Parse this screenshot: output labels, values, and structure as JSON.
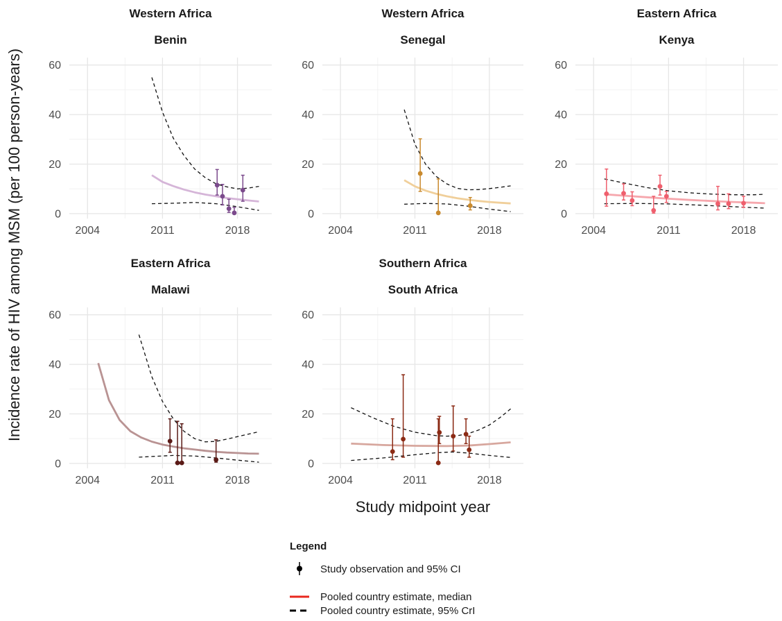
{
  "chart_data": {
    "type": "line",
    "ylabel": "Incidence rate of HIV among MSM (per 100 person-years)",
    "xlabel": "Study midpoint year",
    "xlim": [
      2002.3,
      2021.2
    ],
    "ylim": [
      -2,
      63
    ],
    "x_ticks": [
      2004,
      2011,
      2018
    ],
    "y_ticks": [
      0,
      20,
      40,
      60
    ],
    "grid": true,
    "legend_position": "bottom",
    "legend": {
      "title": "Legend",
      "items": [
        {
          "label": "Study observation and 95% CI",
          "kind": "point"
        },
        {
          "label": "Pooled country estimate, median",
          "kind": "line",
          "color": "#e8281e"
        },
        {
          "label": "Pooled country estimate, 95% CrI",
          "kind": "dashed",
          "color": "#000000"
        }
      ]
    },
    "panels": [
      {
        "region": "Western Africa",
        "country": "Benin",
        "point_color": "#7b4a8c",
        "median_color": "#d5b5d8",
        "median": {
          "x": [
            2010,
            2011,
            2012,
            2013,
            2014,
            2015,
            2016,
            2017,
            2018,
            2019,
            2020
          ],
          "y": [
            15.5,
            12.8,
            11.1,
            9.7,
            8.6,
            7.7,
            7.0,
            6.3,
            5.8,
            5.3,
            4.9
          ]
        },
        "crl_upper": {
          "x": [
            2010,
            2011,
            2012,
            2013,
            2014,
            2015,
            2016,
            2017,
            2018,
            2019,
            2020
          ],
          "y": [
            55,
            41,
            30.5,
            23.5,
            18,
            14.5,
            12,
            10.8,
            10,
            10.3,
            11
          ]
        },
        "crl_lower": {
          "x": [
            2010,
            2012,
            2014,
            2016,
            2018,
            2020
          ],
          "y": [
            4,
            4.2,
            4.5,
            4,
            2.8,
            1.3
          ]
        },
        "observations": [
          {
            "x": 2016.1,
            "y": 11.5,
            "lo": 7.5,
            "hi": 17.8
          },
          {
            "x": 2016.6,
            "y": 7.0,
            "lo": 3.5,
            "hi": 11.8
          },
          {
            "x": 2017.2,
            "y": 2.0,
            "lo": 0.5,
            "hi": 5.8
          },
          {
            "x": 2017.7,
            "y": 0.3,
            "lo": 0.0,
            "hi": 2.5
          },
          {
            "x": 2018.5,
            "y": 9.5,
            "lo": 5.0,
            "hi": 15.5
          }
        ]
      },
      {
        "region": "Western Africa",
        "country": "Senegal",
        "point_color": "#c98a2e",
        "median_color": "#f0cf9a",
        "median": {
          "x": [
            2010,
            2011,
            2012,
            2013,
            2014,
            2015,
            2016,
            2017,
            2018,
            2019,
            2020
          ],
          "y": [
            13.5,
            11,
            9.3,
            8,
            7,
            6.2,
            5.6,
            5.1,
            4.7,
            4.4,
            4.1
          ]
        },
        "crl_upper": {
          "x": [
            2010,
            2011,
            2012,
            2013,
            2014,
            2015,
            2016,
            2017,
            2018,
            2019,
            2020
          ],
          "y": [
            42,
            28,
            20,
            15,
            12,
            10.2,
            9.6,
            9.7,
            10.1,
            10.6,
            11.2
          ]
        },
        "crl_lower": {
          "x": [
            2010,
            2012,
            2014,
            2016,
            2018,
            2020
          ],
          "y": [
            3.8,
            4.1,
            3.9,
            3,
            1.8,
            0.8
          ]
        },
        "observations": [
          {
            "x": 2011.5,
            "y": 16.2,
            "lo": 9.0,
            "hi": 30.2
          },
          {
            "x": 2013.2,
            "y": 0.3,
            "lo": 0.0,
            "hi": 14.0
          },
          {
            "x": 2016.2,
            "y": 3.2,
            "lo": 1.5,
            "hi": 6.5
          }
        ]
      },
      {
        "region": "Eastern Africa",
        "country": "Kenya",
        "point_color": "#ef5f6d",
        "median_color": "#f6a7ad",
        "median": {
          "x": [
            2005,
            2007,
            2009,
            2011,
            2013,
            2015,
            2017,
            2019,
            2020
          ],
          "y": [
            7.8,
            7.2,
            6.6,
            6.0,
            5.5,
            5.1,
            4.7,
            4.4,
            4.2
          ]
        },
        "crl_upper": {
          "x": [
            2005,
            2007,
            2009,
            2011,
            2013,
            2015,
            2017,
            2019,
            2020
          ],
          "y": [
            14,
            12.2,
            10.5,
            9.2,
            8.4,
            7.9,
            7.6,
            7.6,
            7.8
          ]
        },
        "crl_lower": {
          "x": [
            2005,
            2008,
            2011,
            2014,
            2017,
            2020
          ],
          "y": [
            4,
            4.1,
            3.9,
            3.4,
            2.8,
            2.2
          ]
        },
        "observations": [
          {
            "x": 2005.2,
            "y": 8.0,
            "lo": 3.0,
            "hi": 18.0
          },
          {
            "x": 2006.8,
            "y": 8.2,
            "lo": 5.5,
            "hi": 12.0
          },
          {
            "x": 2007.6,
            "y": 5.3,
            "lo": 3.2,
            "hi": 8.8
          },
          {
            "x": 2009.6,
            "y": 1.3,
            "lo": 0.2,
            "hi": 7.0
          },
          {
            "x": 2010.2,
            "y": 11.0,
            "lo": 7.5,
            "hi": 15.5
          },
          {
            "x": 2010.8,
            "y": 7.0,
            "lo": 4.5,
            "hi": 9.0
          },
          {
            "x": 2015.6,
            "y": 4.0,
            "lo": 1.5,
            "hi": 11.0
          },
          {
            "x": 2016.6,
            "y": 4.0,
            "lo": 2.0,
            "hi": 8.0
          },
          {
            "x": 2018.0,
            "y": 4.2,
            "lo": 2.5,
            "hi": 7.0
          }
        ]
      },
      {
        "region": "Eastern Africa",
        "country": "Malawi",
        "point_color": "#5a1a16",
        "median_color": "#b99393",
        "median": {
          "x": [
            2005,
            2006,
            2007,
            2008,
            2009,
            2010,
            2011,
            2012,
            2013,
            2014,
            2015,
            2016,
            2017,
            2018,
            2019,
            2020
          ],
          "y": [
            40.5,
            25.5,
            17.5,
            13,
            10.5,
            8.8,
            7.6,
            6.8,
            6.1,
            5.6,
            5.1,
            4.7,
            4.4,
            4.2,
            4.0,
            3.9
          ]
        },
        "crl_upper": {
          "x": [
            2008.8,
            2010,
            2011,
            2012,
            2013,
            2014,
            2015,
            2016,
            2017,
            2018,
            2019,
            2020
          ],
          "y": [
            52,
            35,
            25,
            18,
            13,
            10,
            8.7,
            8.9,
            9.8,
            10.8,
            11.8,
            12.8
          ]
        },
        "crl_lower": {
          "x": [
            2008.8,
            2010,
            2012,
            2014,
            2016,
            2018,
            2020
          ],
          "y": [
            2.5,
            2.8,
            3.2,
            3.0,
            2.2,
            1.3,
            0.5
          ]
        },
        "observations": [
          {
            "x": 2011.7,
            "y": 9.0,
            "lo": 4.5,
            "hi": 18.0
          },
          {
            "x": 2012.4,
            "y": 0.2,
            "lo": 0.0,
            "hi": 17.0
          },
          {
            "x": 2012.8,
            "y": 0.2,
            "lo": 0.0,
            "hi": 16.0
          },
          {
            "x": 2016.0,
            "y": 1.5,
            "lo": 0.5,
            "hi": 9.5
          }
        ]
      },
      {
        "region": "Southern Africa",
        "country": "South Africa",
        "point_color": "#8b2a14",
        "median_color": "#d7a79e",
        "median": {
          "x": [
            2005,
            2008,
            2011,
            2014,
            2016,
            2018,
            2020
          ],
          "y": [
            8,
            7.4,
            7.1,
            7.0,
            7.2,
            7.8,
            8.5
          ]
        },
        "crl_upper": {
          "x": [
            2005,
            2007,
            2009,
            2011,
            2013,
            2014,
            2015,
            2016,
            2017,
            2018,
            2019,
            2020
          ],
          "y": [
            22.5,
            18.5,
            15,
            12.6,
            11.2,
            11,
            11.2,
            12,
            13.5,
            15.5,
            18.5,
            22
          ]
        },
        "crl_lower": {
          "x": [
            2005,
            2008,
            2011,
            2013,
            2014.5,
            2016,
            2018,
            2020
          ],
          "y": [
            1.2,
            2.2,
            3.5,
            4.3,
            4.6,
            4.2,
            3.2,
            2.4
          ]
        },
        "observations": [
          {
            "x": 2008.9,
            "y": 4.8,
            "lo": 1.5,
            "hi": 18.0
          },
          {
            "x": 2009.9,
            "y": 9.8,
            "lo": 2.5,
            "hi": 35.8
          },
          {
            "x": 2013.3,
            "y": 12.5,
            "lo": 8.0,
            "hi": 19.0
          },
          {
            "x": 2013.2,
            "y": 0.2,
            "lo": 0.0,
            "hi": 18.0
          },
          {
            "x": 2014.6,
            "y": 11.0,
            "lo": 5.0,
            "hi": 23.2
          },
          {
            "x": 2015.8,
            "y": 11.8,
            "lo": 8.0,
            "hi": 18.0
          },
          {
            "x": 2016.1,
            "y": 5.5,
            "lo": 2.5,
            "hi": 11.0
          }
        ]
      }
    ]
  }
}
